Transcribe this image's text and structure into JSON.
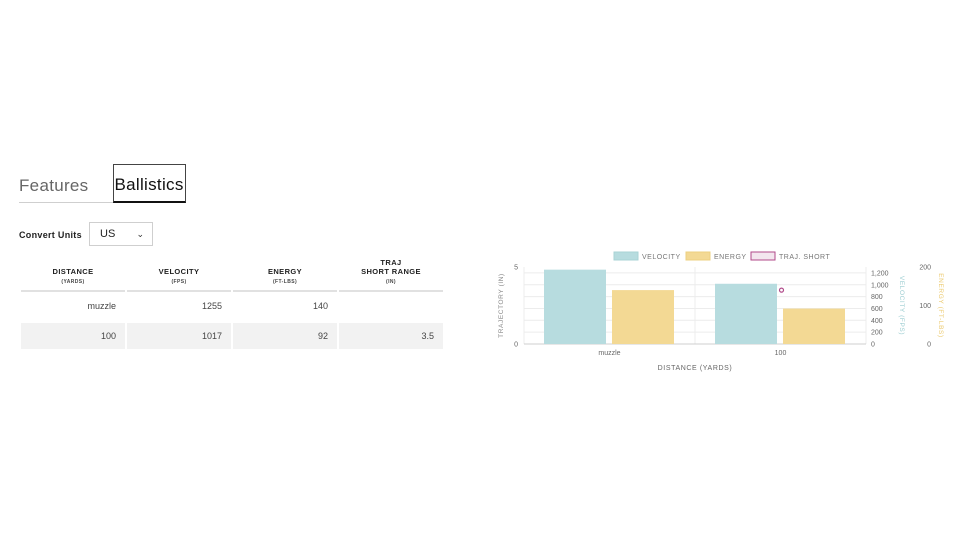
{
  "tabs": [
    {
      "label": "Features",
      "active": false
    },
    {
      "label": "Ballistics",
      "active": true
    }
  ],
  "convert_units": {
    "label": "Convert Units",
    "selected": "US"
  },
  "table": {
    "columns": [
      {
        "title": "DISTANCE",
        "sub": "(YARDS)"
      },
      {
        "title": "VELOCITY",
        "sub": "(FPS)"
      },
      {
        "title": "ENERGY",
        "sub": "(FT-LBS)"
      },
      {
        "title": "TRAJ\nSHORT RANGE",
        "sub": "(IN)"
      }
    ],
    "rows": [
      [
        "muzzle",
        "1255",
        "140",
        ""
      ],
      [
        "100",
        "1017",
        "92",
        "3.5"
      ]
    ]
  },
  "colors": {
    "velocity": "#b7dcdf",
    "energy": "#f3d994",
    "traj": "#b04a8a"
  },
  "chart_data": {
    "type": "bar",
    "categories": [
      "muzzle",
      "100"
    ],
    "series": [
      {
        "name": "VELOCITY",
        "axis": "VELOCITY (FPS)",
        "values": [
          1255,
          1017
        ]
      },
      {
        "name": "ENERGY",
        "axis": "ENERGY (FT-LBS)",
        "values": [
          140,
          92
        ]
      },
      {
        "name": "TRAJ. SHORT",
        "axis": "TRAJECTORY (IN)",
        "type": "line",
        "values": [
          null,
          3.5
        ]
      }
    ],
    "xlabel": "DISTANCE (YARDS)",
    "ylabel_left": "TRAJECTORY (IN)",
    "ylim_left": [
      0,
      5
    ],
    "ticks_left": [
      "0",
      "5"
    ],
    "ylabel_velocity": "VELOCITY (FPS)",
    "ylim_velocity": [
      0,
      1300
    ],
    "ticks_velocity": [
      "0",
      "200",
      "400",
      "600",
      "800",
      "1,000",
      "1,200"
    ],
    "ylabel_energy": "ENERGY (FT-LBS)",
    "ylim_energy": [
      0,
      200
    ],
    "ticks_energy": [
      "0",
      "100",
      "200"
    ],
    "legend": "top",
    "grid": true
  }
}
